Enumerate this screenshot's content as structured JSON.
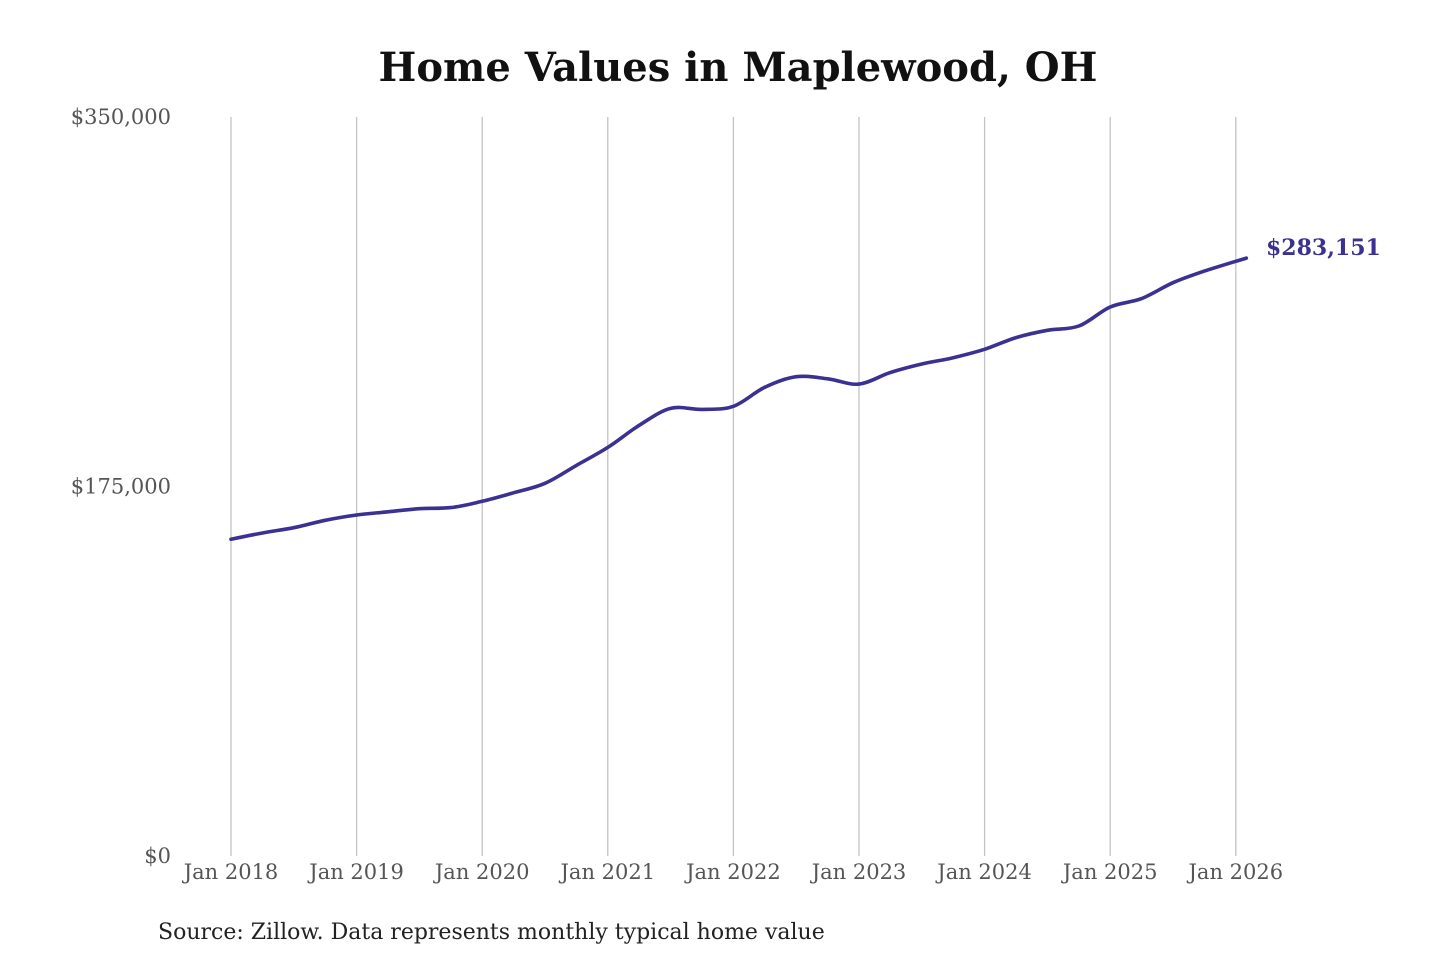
{
  "chart_data": {
    "type": "line",
    "title": "Home Values in Maplewood, OH",
    "source": "Source: Zillow. Data represents monthly typical home value",
    "ylim": [
      0,
      350000
    ],
    "y_ticks": [
      {
        "value": 0,
        "label": "$0"
      },
      {
        "value": 175000,
        "label": "$175,000"
      },
      {
        "value": 350000,
        "label": "$350,000"
      }
    ],
    "x_ticks": [
      {
        "value": "2018-01",
        "label": "Jan 2018"
      },
      {
        "value": "2019-01",
        "label": "Jan 2019"
      },
      {
        "value": "2020-01",
        "label": "Jan 2020"
      },
      {
        "value": "2021-01",
        "label": "Jan 2021"
      },
      {
        "value": "2022-01",
        "label": "Jan 2022"
      },
      {
        "value": "2023-01",
        "label": "Jan 2023"
      },
      {
        "value": "2024-01",
        "label": "Jan 2024"
      },
      {
        "value": "2025-01",
        "label": "Jan 2025"
      },
      {
        "value": "2026-01",
        "label": "Jan 2026"
      }
    ],
    "grid": "vertical",
    "line_color": "#3a3193",
    "end_label": "$283,151",
    "series": [
      {
        "points": [
          {
            "x": "2018-01",
            "y": 150000
          },
          {
            "x": "2018-04",
            "y": 153000
          },
          {
            "x": "2018-07",
            "y": 155500
          },
          {
            "x": "2018-10",
            "y": 159000
          },
          {
            "x": "2019-01",
            "y": 161500
          },
          {
            "x": "2019-04",
            "y": 163000
          },
          {
            "x": "2019-07",
            "y": 164500
          },
          {
            "x": "2019-10",
            "y": 165000
          },
          {
            "x": "2020-01",
            "y": 168000
          },
          {
            "x": "2020-04",
            "y": 172000
          },
          {
            "x": "2020-07",
            "y": 176500
          },
          {
            "x": "2020-10",
            "y": 185000
          },
          {
            "x": "2021-01",
            "y": 193500
          },
          {
            "x": "2021-04",
            "y": 204000
          },
          {
            "x": "2021-07",
            "y": 212000
          },
          {
            "x": "2021-10",
            "y": 211500
          },
          {
            "x": "2022-01",
            "y": 213000
          },
          {
            "x": "2022-04",
            "y": 222000
          },
          {
            "x": "2022-07",
            "y": 227000
          },
          {
            "x": "2022-10",
            "y": 226000
          },
          {
            "x": "2023-01",
            "y": 223500
          },
          {
            "x": "2023-04",
            "y": 229000
          },
          {
            "x": "2023-07",
            "y": 233000
          },
          {
            "x": "2023-10",
            "y": 236000
          },
          {
            "x": "2024-01",
            "y": 240000
          },
          {
            "x": "2024-04",
            "y": 245500
          },
          {
            "x": "2024-07",
            "y": 249000
          },
          {
            "x": "2024-10",
            "y": 251000
          },
          {
            "x": "2025-01",
            "y": 260000
          },
          {
            "x": "2025-04",
            "y": 264000
          },
          {
            "x": "2025-07",
            "y": 271500
          },
          {
            "x": "2025-10",
            "y": 277000
          },
          {
            "x": "2026-02",
            "y": 283151
          }
        ]
      }
    ]
  }
}
